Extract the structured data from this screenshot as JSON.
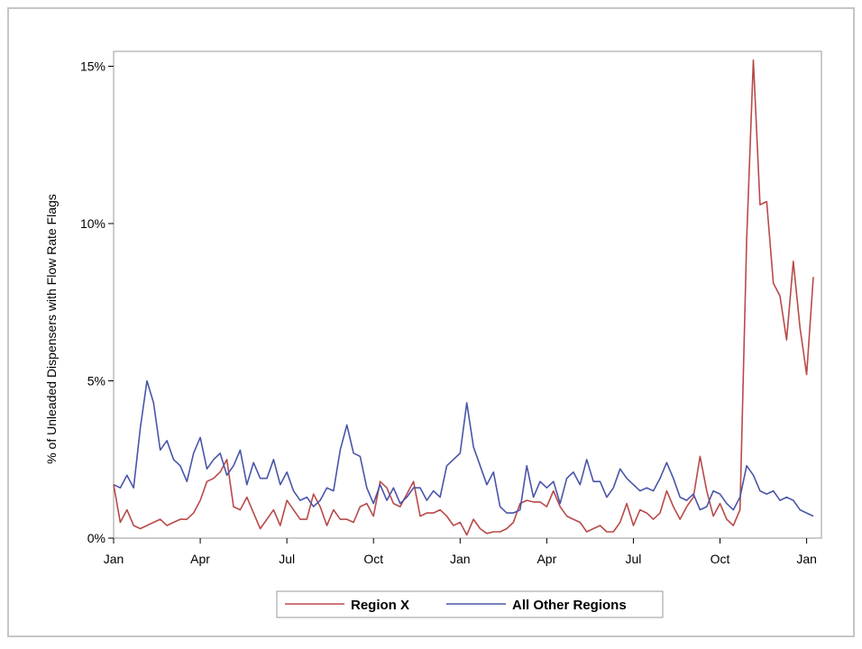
{
  "chart_data": {
    "type": "line",
    "title": "",
    "xlabel": "",
    "ylabel": "% of Unleaded Dispensers with Flow Rate Flags",
    "x_tick_labels": [
      "Jan",
      "Apr",
      "Jul",
      "Oct",
      "Jan",
      "Apr",
      "Jul",
      "Oct",
      "Jan"
    ],
    "y_tick_labels": [
      "0%",
      "5%",
      "10%",
      "15%"
    ],
    "ylim": [
      0,
      15.5
    ],
    "grid": false,
    "legend_position": "bottom",
    "series": [
      {
        "name": "Region X",
        "color": "#b84a4a",
        "values": [
          1.7,
          0.5,
          0.9,
          0.4,
          0.3,
          0.4,
          0.5,
          0.6,
          0.4,
          0.5,
          0.6,
          0.6,
          0.8,
          1.2,
          1.8,
          1.9,
          2.1,
          2.5,
          1.0,
          0.9,
          1.3,
          0.8,
          0.3,
          0.6,
          0.9,
          0.4,
          1.2,
          0.9,
          0.6,
          0.6,
          1.4,
          1.0,
          0.4,
          0.9,
          0.6,
          0.6,
          0.5,
          1.0,
          1.1,
          0.7,
          1.8,
          1.6,
          1.1,
          1.0,
          1.4,
          1.8,
          0.7,
          0.8,
          0.8,
          0.9,
          0.7,
          0.4,
          0.5,
          0.1,
          0.6,
          0.3,
          0.15,
          0.2,
          0.2,
          0.3,
          0.5,
          1.1,
          1.2,
          1.15,
          1.15,
          1.0,
          1.5,
          1.0,
          0.7,
          0.6,
          0.5,
          0.2,
          0.3,
          0.4,
          0.2,
          0.2,
          0.5,
          1.1,
          0.4,
          0.9,
          0.8,
          0.6,
          0.8,
          1.5,
          1.0,
          0.6,
          1.0,
          1.3,
          2.6,
          1.5,
          0.7,
          1.1,
          0.6,
          0.4,
          0.9,
          9.5,
          15.2,
          10.6,
          10.7,
          8.1,
          7.7,
          6.3,
          8.8,
          6.7,
          5.2,
          8.3
        ]
      },
      {
        "name": "All Other Regions",
        "color": "#4a55a8",
        "values": [
          1.7,
          1.6,
          2.0,
          1.6,
          3.5,
          5.0,
          4.3,
          2.8,
          3.1,
          2.5,
          2.3,
          1.8,
          2.7,
          3.2,
          2.2,
          2.5,
          2.7,
          2.0,
          2.3,
          2.8,
          1.7,
          2.4,
          1.9,
          1.9,
          2.5,
          1.7,
          2.1,
          1.5,
          1.2,
          1.3,
          1.0,
          1.2,
          1.6,
          1.5,
          2.8,
          3.6,
          2.7,
          2.6,
          1.6,
          1.1,
          1.7,
          1.2,
          1.6,
          1.1,
          1.3,
          1.6,
          1.6,
          1.2,
          1.5,
          1.3,
          2.3,
          2.5,
          2.7,
          4.3,
          2.9,
          2.3,
          1.7,
          2.1,
          1.0,
          0.8,
          0.8,
          0.9,
          2.3,
          1.3,
          1.8,
          1.6,
          1.8,
          1.1,
          1.9,
          2.1,
          1.7,
          2.5,
          1.8,
          1.8,
          1.3,
          1.6,
          2.2,
          1.9,
          1.7,
          1.5,
          1.6,
          1.5,
          1.9,
          2.4,
          1.9,
          1.3,
          1.2,
          1.4,
          0.9,
          1.0,
          1.5,
          1.4,
          1.1,
          0.9,
          1.3,
          2.3,
          2.0,
          1.5,
          1.4,
          1.5,
          1.2,
          1.3,
          1.2,
          0.9,
          0.8,
          0.7
        ]
      }
    ]
  }
}
